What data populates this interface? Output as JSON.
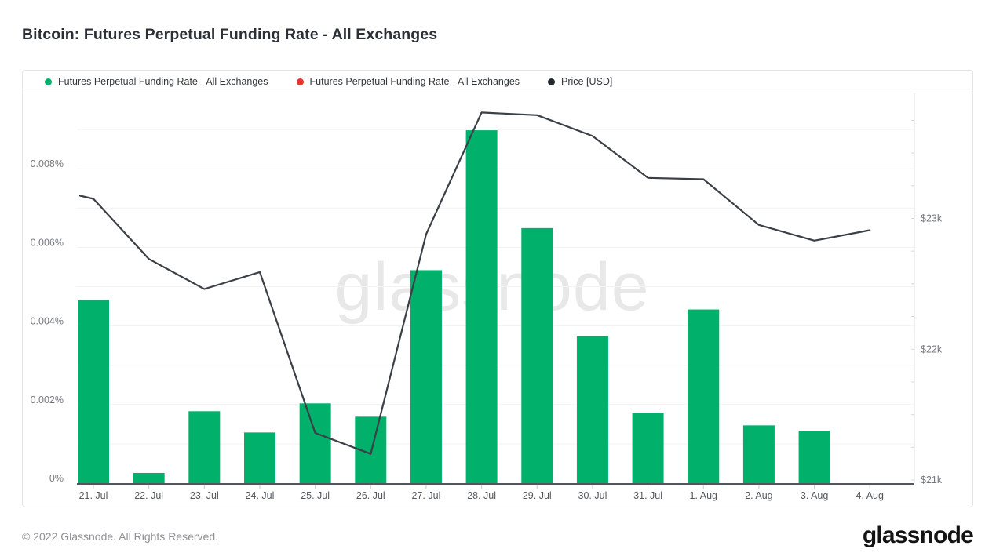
{
  "page": {
    "title": "Bitcoin: Futures Perpetual Funding Rate - All Exchanges",
    "footer_copyright": "© 2022 Glassnode. All Rights Reserved.",
    "brand_logo": "glassnode"
  },
  "legend": [
    {
      "label": "Futures Perpetual Funding Rate - All Exchanges",
      "color": "#00b06b"
    },
    {
      "label": "Futures Perpetual Funding Rate - All Exchanges",
      "color": "#e8342c"
    },
    {
      "label": "Price [USD]",
      "color": "#25282c"
    }
  ],
  "chart_data": {
    "type": "bar+line",
    "watermark": "glassnode",
    "legend_position": "top",
    "grid": "horizontal-faint",
    "categories": [
      "21. Jul",
      "22. Jul",
      "23. Jul",
      "24. Jul",
      "25. Jul",
      "26. Jul",
      "27. Jul",
      "28. Jul",
      "29. Jul",
      "30. Jul",
      "31. Jul",
      "1. Aug",
      "2. Aug",
      "3. Aug",
      "4. Aug"
    ],
    "series": [
      {
        "name": "Futures Perpetual Funding Rate - All Exchanges",
        "type": "bar",
        "axis": "left",
        "unit": "%",
        "color": "#00b06b",
        "values": [
          0.00466,
          0.00026,
          0.00183,
          0.00129,
          0.00203,
          0.00169,
          0.00542,
          0.00898,
          0.00649,
          0.00374,
          0.00179,
          0.00442,
          0.00147,
          0.00133,
          0
        ]
      },
      {
        "name": "Price [USD]",
        "type": "line",
        "axis": "right",
        "unit": "USD",
        "color": "#3b3f46",
        "values": [
          23150,
          22690,
          22460,
          22590,
          21360,
          21200,
          22880,
          23810,
          23790,
          23630,
          23310,
          23300,
          22950,
          22830,
          22910
        ]
      }
    ],
    "left_axis": {
      "unit": "%",
      "min": 0,
      "max": 0.00992,
      "minor_grid_step": 0.001,
      "ticks": [
        {
          "label": "0%",
          "value": 0
        },
        {
          "label": "0.002%",
          "value": 0.002
        },
        {
          "label": "0.004%",
          "value": 0.004
        },
        {
          "label": "0.006%",
          "value": 0.006
        },
        {
          "label": "0.008%",
          "value": 0.008
        }
      ]
    },
    "right_axis": {
      "unit": "USD",
      "ticks": [
        {
          "label": "$21k",
          "value": 21000
        },
        {
          "label": "$22k",
          "value": 22000
        },
        {
          "label": "$23k",
          "value": 23000
        }
      ]
    }
  }
}
